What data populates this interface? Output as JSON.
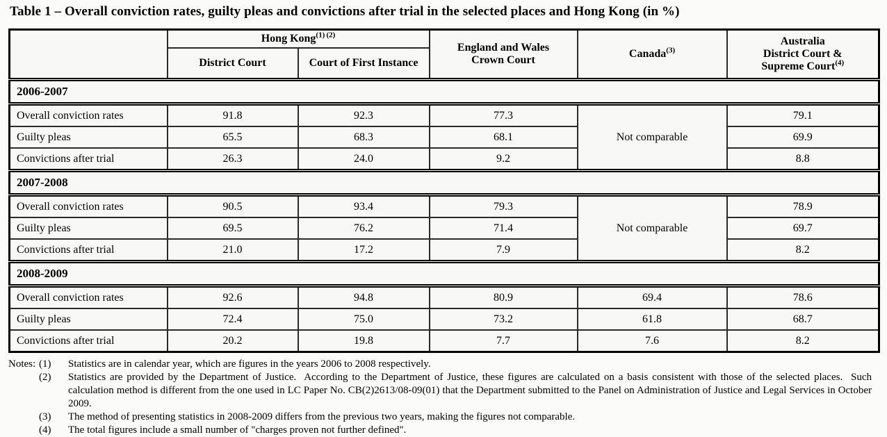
{
  "title": "Table 1 – Overall conviction rates, guilty pleas and convictions after trial in the selected places and Hong Kong (in %)",
  "header": {
    "corner": "",
    "hong_kong_label": "Hong Kong",
    "hong_kong_sup": "(1) (2)",
    "district_court": "District Court",
    "court_of_first_instance": "Court of First Instance",
    "england_line1": "England and Wales",
    "england_line2": "Crown Court",
    "canada_label": "Canada",
    "canada_sup": "(3)",
    "australia_line1": "Australia",
    "australia_line2": "District Court &",
    "australia_line3": "Supreme Court",
    "australia_sup": "(4)"
  },
  "table": {
    "sections": [
      {
        "year": "2006-2007",
        "canada_merged": "Not comparable",
        "rows": [
          {
            "label": "Overall conviction rates",
            "values": [
              "91.8",
              "92.3",
              "77.3",
              "79.1"
            ]
          },
          {
            "label": "Guilty pleas",
            "values": [
              "65.5",
              "68.3",
              "68.1",
              "69.9"
            ]
          },
          {
            "label": "Convictions after trial",
            "values": [
              "26.3",
              "24.0",
              "9.2",
              "8.8"
            ]
          }
        ]
      },
      {
        "year": "2007-2008",
        "canada_merged": "Not comparable",
        "rows": [
          {
            "label": "Overall conviction rates",
            "values": [
              "90.5",
              "93.4",
              "79.3",
              "78.9"
            ]
          },
          {
            "label": "Guilty pleas",
            "values": [
              "69.5",
              "76.2",
              "71.4",
              "69.7"
            ]
          },
          {
            "label": "Convictions after trial",
            "values": [
              "21.0",
              "17.2",
              "7.9",
              "8.2"
            ]
          }
        ]
      },
      {
        "year": "2008-2009",
        "canada_merged": null,
        "rows": [
          {
            "label": "Overall conviction rates",
            "values": [
              "92.6",
              "94.8",
              "80.9",
              "69.4",
              "78.6"
            ]
          },
          {
            "label": "Guilty pleas",
            "values": [
              "72.4",
              "75.0",
              "73.2",
              "61.8",
              "68.7"
            ]
          },
          {
            "label": "Convictions after trial",
            "values": [
              "20.2",
              "19.8",
              "7.7",
              "7.6",
              "8.2"
            ]
          }
        ]
      }
    ]
  },
  "notes": {
    "label": "Notes:",
    "items": [
      {
        "num": "(1)",
        "text": "Statistics are in calendar year, which are figures in the years 2006 to 2008 respectively."
      },
      {
        "num": "(2)",
        "text": "Statistics are provided by the Department of Justice.  According to the Department of Justice, these figures are calculated on a basis consistent with those of the selected places.  Such calculation method is different from the one used in LC Paper No. CB(2)2613/08-09(01) that the Department submitted to the Panel on Administration of Justice and Legal Services in October 2009."
      },
      {
        "num": "(3)",
        "text": "The method of presenting statistics in 2008-2009 differs from the previous two years, making the figures not comparable."
      },
      {
        "num": "(4)",
        "text": "The total figures include a small number of \"charges proven not further defined\"."
      }
    ]
  }
}
